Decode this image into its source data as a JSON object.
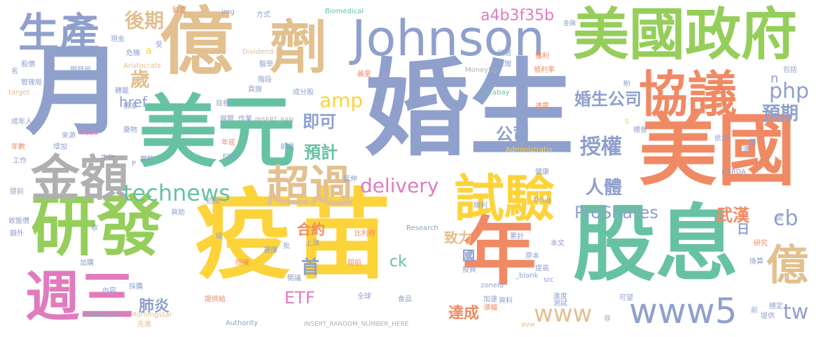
{
  "colors": {
    "blue": "#8fa0cc",
    "orange": "#f08a64",
    "green": "#95ce5a",
    "teal": "#67c2a3",
    "yellow": "#fdd33a",
    "tan": "#e2c08f",
    "pink": "#e07bbf",
    "gray": "#b0b0b0"
  },
  "words": [
    {
      "text": "婚生",
      "color": "blue"
    },
    {
      "text": "疫苗",
      "color": "yellow"
    },
    {
      "text": "億",
      "color": "tan"
    },
    {
      "text": "劑",
      "color": "tan"
    },
    {
      "text": "美元",
      "color": "teal"
    },
    {
      "text": "月",
      "color": "blue"
    },
    {
      "text": "股息",
      "color": "teal"
    },
    {
      "text": "年",
      "color": "orange"
    },
    {
      "text": "美國",
      "color": "orange"
    },
    {
      "text": "美國政府",
      "color": "green"
    },
    {
      "text": "Johnson",
      "color": "blue"
    },
    {
      "text": "研發",
      "color": "green"
    },
    {
      "text": "金額",
      "color": "gray"
    },
    {
      "text": "試驗",
      "color": "yellow"
    },
    {
      "text": "協議",
      "color": "orange"
    },
    {
      "text": "週三",
      "color": "pink"
    },
    {
      "text": "生產",
      "color": "blue"
    },
    {
      "text": "超過",
      "color": "tan"
    },
    {
      "text": "www5",
      "color": "blue"
    },
    {
      "text": "億",
      "color": "tan"
    },
    {
      "text": "technews",
      "color": "teal"
    },
    {
      "text": "delivery",
      "color": "pink"
    },
    {
      "text": "ProShares",
      "color": "blue"
    },
    {
      "text": "後期",
      "color": "tan"
    },
    {
      "text": "www",
      "color": "tan"
    },
    {
      "text": "a4b3f35b",
      "color": "pink"
    },
    {
      "text": "amp",
      "color": "yellow"
    },
    {
      "text": "php",
      "color": "blue"
    },
    {
      "text": "婚生公司",
      "color": "blue"
    },
    {
      "text": "授權",
      "color": "blue"
    },
    {
      "text": "預期",
      "color": "blue"
    },
    {
      "text": "公司",
      "color": "blue"
    },
    {
      "text": "即可",
      "color": "blue"
    },
    {
      "text": "預計",
      "color": "teal"
    },
    {
      "text": "人體",
      "color": "blue"
    },
    {
      "text": "歲",
      "color": "tan"
    },
    {
      "text": "href",
      "color": "blue"
    },
    {
      "text": "ETF",
      "color": "pink"
    },
    {
      "text": "首",
      "color": "blue"
    },
    {
      "text": "cb",
      "color": "blue"
    },
    {
      "text": "tw",
      "color": "blue"
    },
    {
      "text": "武漢",
      "color": "orange"
    },
    {
      "text": "合約",
      "color": "orange"
    },
    {
      "text": "肺炎",
      "color": "blue"
    },
    {
      "text": "致力",
      "color": "tan"
    },
    {
      "text": "國",
      "color": "blue"
    },
    {
      "text": "達成",
      "color": "orange"
    },
    {
      "text": "ck",
      "color": "teal"
    },
    {
      "text": "日",
      "color": "blue"
    },
    {
      "text": "n",
      "color": "blue"
    },
    {
      "text": "img",
      "color": "blue"
    },
    {
      "text": "緊急",
      "color": "orange"
    },
    {
      "text": "方式",
      "color": "blue"
    },
    {
      "text": "Biomedical",
      "color": "teal"
    },
    {
      "text": "現金",
      "color": "blue"
    },
    {
      "text": "危機",
      "color": "blue"
    },
    {
      "text": "a",
      "color": "yellow"
    },
    {
      "text": "Dividend",
      "color": "tan"
    },
    {
      "text": "Aristocrats",
      "color": "tan"
    },
    {
      "text": "股價",
      "color": "blue"
    },
    {
      "text": "開發局",
      "color": "blue"
    },
    {
      "text": "管理局",
      "color": "blue"
    },
    {
      "text": "target",
      "color": "tan"
    },
    {
      "text": "轉載",
      "color": "blue"
    },
    {
      "text": "核准",
      "color": "blue"
    },
    {
      "text": "成年人",
      "color": "blue"
    },
    {
      "text": "年數",
      "color": "orange"
    },
    {
      "text": "工作",
      "color": "blue"
    },
    {
      "text": "提前",
      "color": "blue"
    },
    {
      "text": "收盤價",
      "color": "blue"
    },
    {
      "text": "額外",
      "color": "blue"
    },
    {
      "text": "加購",
      "color": "blue"
    },
    {
      "text": "內容",
      "color": "blue"
    },
    {
      "text": "Advanced",
      "color": "teal"
    },
    {
      "text": "Morningstar",
      "color": "tan"
    },
    {
      "text": "先進",
      "color": "tan"
    },
    {
      "text": "Authority",
      "color": "blue"
    },
    {
      "text": "INSERT_RANDOM_NUMBER_HERE",
      "color": "gray"
    },
    {
      "text": "INSERT_RAN",
      "color": "gray"
    },
    {
      "text": "Food",
      "color": "pink"
    },
    {
      "text": "來源",
      "color": "blue"
    },
    {
      "text": "增加",
      "color": "blue"
    },
    {
      "text": "生物",
      "color": "blue"
    },
    {
      "text": "藥物",
      "color": "blue"
    },
    {
      "text": "實驗",
      "color": "blue"
    },
    {
      "text": "資助",
      "color": "blue"
    },
    {
      "text": "初期",
      "color": "blue"
    },
    {
      "text": "FDA",
      "color": "blue"
    },
    {
      "text": "年底",
      "color": "orange"
    },
    {
      "text": "前提",
      "color": "blue"
    },
    {
      "text": "延伸",
      "color": "blue"
    },
    {
      "text": "展開",
      "color": "blue"
    },
    {
      "text": "作業",
      "color": "blue"
    },
    {
      "text": "目標",
      "color": "blue"
    },
    {
      "text": "醫學",
      "color": "blue"
    },
    {
      "text": "階段",
      "color": "blue"
    },
    {
      "text": "貢旗",
      "color": "blue"
    },
    {
      "text": "成分股",
      "color": "blue"
    },
    {
      "text": "晨星",
      "color": "orange"
    },
    {
      "text": "MoneyDJ",
      "color": "gray"
    },
    {
      "text": "pixabay",
      "color": "teal"
    },
    {
      "text": "新聞",
      "color": "blue"
    },
    {
      "text": "候選",
      "color": "blue"
    },
    {
      "text": "殖利率",
      "color": "orange"
    },
    {
      "text": "獲利",
      "color": "orange"
    },
    {
      "text": "金融",
      "color": "blue"
    },
    {
      "text": "Drug",
      "color": "blue"
    },
    {
      "text": "Research",
      "color": "blue"
    },
    {
      "text": "Administratio",
      "color": "yellow"
    },
    {
      "text": "健康",
      "color": "blue"
    },
    {
      "text": "透露",
      "color": "orange"
    },
    {
      "text": "標普",
      "color": "blue"
    },
    {
      "text": "依然",
      "color": "blue"
    },
    {
      "text": "BARDA",
      "color": "blue"
    },
    {
      "text": "包括",
      "color": "blue"
    },
    {
      "text": "研究",
      "color": "orange"
    },
    {
      "text": "換算",
      "color": "blue"
    },
    {
      "text": "穩定",
      "color": "blue"
    },
    {
      "text": "提供",
      "color": "blue"
    },
    {
      "text": "前",
      "color": "blue"
    },
    {
      "text": "非",
      "color": "blue"
    },
    {
      "text": "可望",
      "color": "blue"
    },
    {
      "text": "測試",
      "color": "blue"
    },
    {
      "text": "進度",
      "color": "blue"
    },
    {
      "text": "src",
      "color": "blue"
    },
    {
      "text": "提高",
      "color": "blue"
    },
    {
      "text": "原本",
      "color": "blue"
    },
    {
      "text": "本文",
      "color": "blue"
    },
    {
      "text": "累計",
      "color": "blue"
    },
    {
      "text": "_blank",
      "color": "blue"
    },
    {
      "text": "avw",
      "color": "tan"
    },
    {
      "text": "漲幅",
      "color": "orange"
    },
    {
      "text": "資料",
      "color": "blue"
    },
    {
      "text": "加速",
      "color": "blue"
    },
    {
      "text": "zoneid",
      "color": "blue"
    },
    {
      "text": "投資",
      "color": "blue"
    },
    {
      "text": "食品",
      "color": "blue"
    },
    {
      "text": "全球",
      "color": "blue"
    },
    {
      "text": "超前",
      "color": "orange"
    },
    {
      "text": "開議",
      "color": "blue"
    },
    {
      "text": "提供給",
      "color": "orange"
    },
    {
      "text": "採購",
      "color": "blue"
    },
    {
      "text": "授權",
      "color": "orange"
    },
    {
      "text": "上漲",
      "color": "blue"
    },
    {
      "text": "選擇",
      "color": "blue"
    },
    {
      "text": "批",
      "color": "blue"
    },
    {
      "text": "比利時",
      "color": "orange"
    },
    {
      "text": "順利",
      "color": "blue"
    },
    {
      "text": "底",
      "color": "blue"
    },
    {
      "text": "收",
      "color": "blue"
    },
    {
      "text": "P",
      "color": "blue"
    },
    {
      "text": "S",
      "color": "yellow"
    },
    {
      "text": "達",
      "color": "blue"
    },
    {
      "text": "試",
      "color": "blue"
    },
    {
      "text": "名",
      "color": "blue"
    },
    {
      "text": "受",
      "color": "blue"
    },
    {
      "text": "盼",
      "color": "blue"
    },
    {
      "text": "團",
      "color": "blue"
    }
  ]
}
